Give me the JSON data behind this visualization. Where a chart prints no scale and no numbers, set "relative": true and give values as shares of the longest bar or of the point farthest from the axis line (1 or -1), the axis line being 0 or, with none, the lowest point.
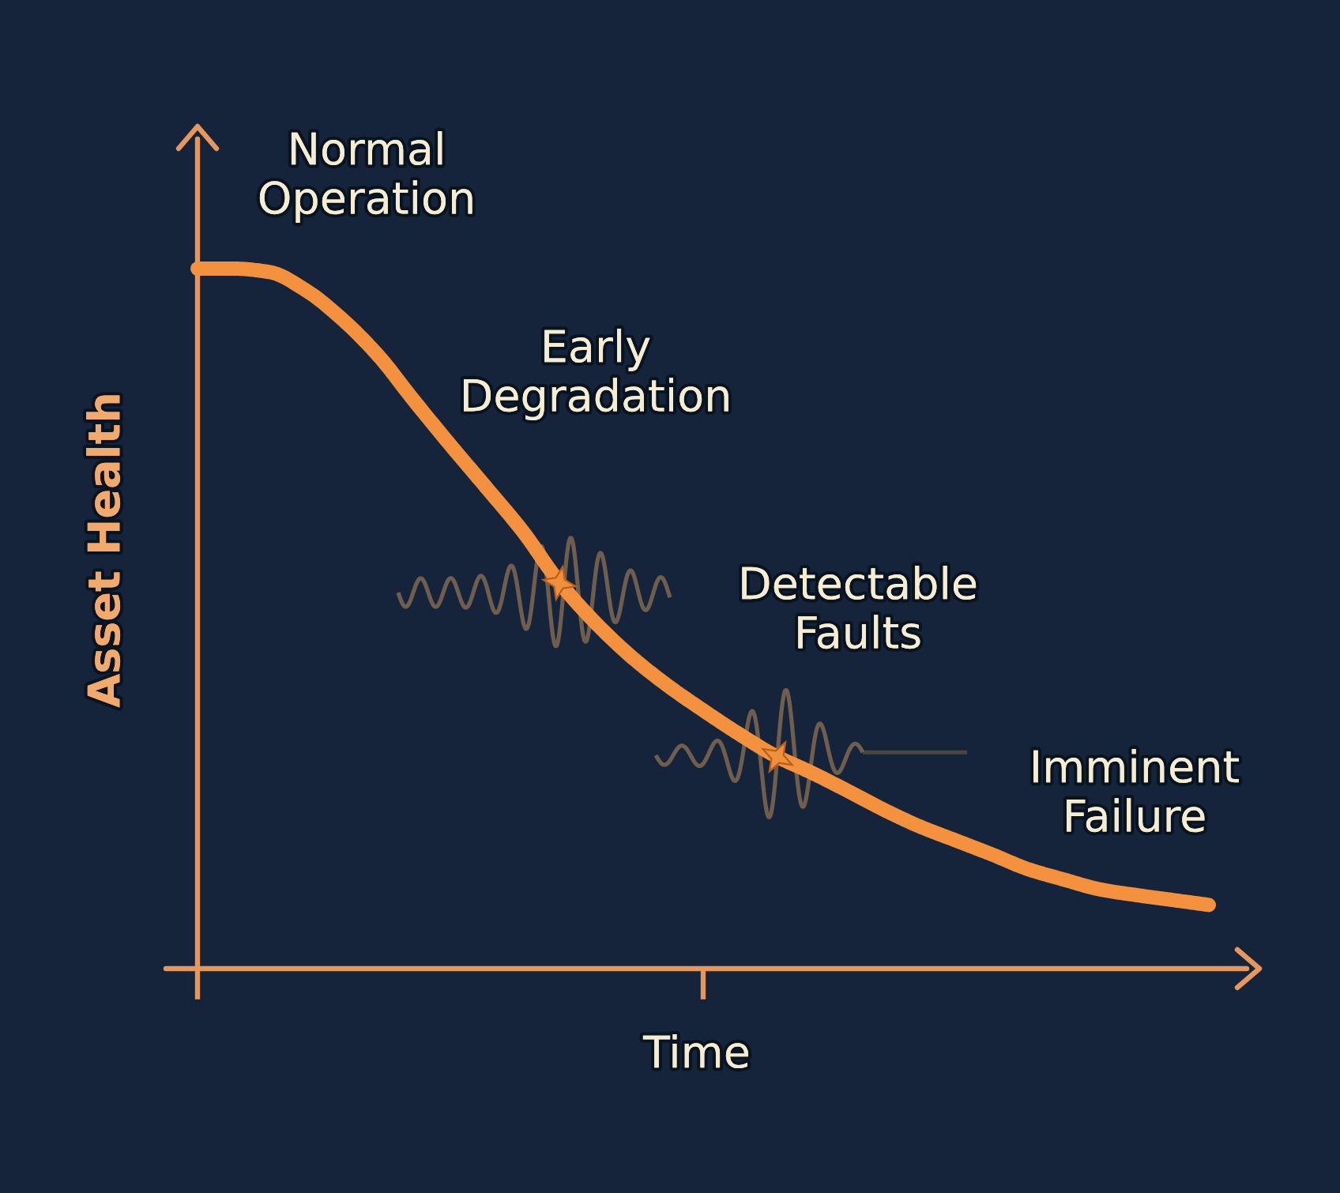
{
  "chart_data": {
    "type": "line",
    "relative": true,
    "xlabel": "Time",
    "ylabel": "Asset Health",
    "line_style": "solid",
    "categories": [
      null,
      null,
      null,
      null,
      null,
      null,
      null,
      null,
      null,
      null,
      null,
      null,
      null,
      null,
      null,
      null,
      null,
      null,
      null,
      null,
      null,
      null,
      null,
      null,
      null,
      null,
      null,
      null,
      null
    ],
    "series": [
      {
        "color": "#f3913f",
        "values": [
          1.0,
          1.0,
          0.995,
          0.969,
          0.928,
          0.876,
          0.811,
          0.748,
          0.687,
          0.625,
          0.553,
          0.495,
          0.446,
          0.405,
          0.369,
          0.335,
          0.304,
          0.28,
          0.254,
          0.227,
          0.203,
          0.183,
          0.163,
          0.142,
          0.127,
          0.113,
          0.105,
          0.098,
          0.091
        ]
      }
    ],
    "annotations": [
      "Normal\nOperation",
      "Early\nDegradation",
      "Detectable\nFaults",
      "Imminent\nFailure"
    ]
  }
}
